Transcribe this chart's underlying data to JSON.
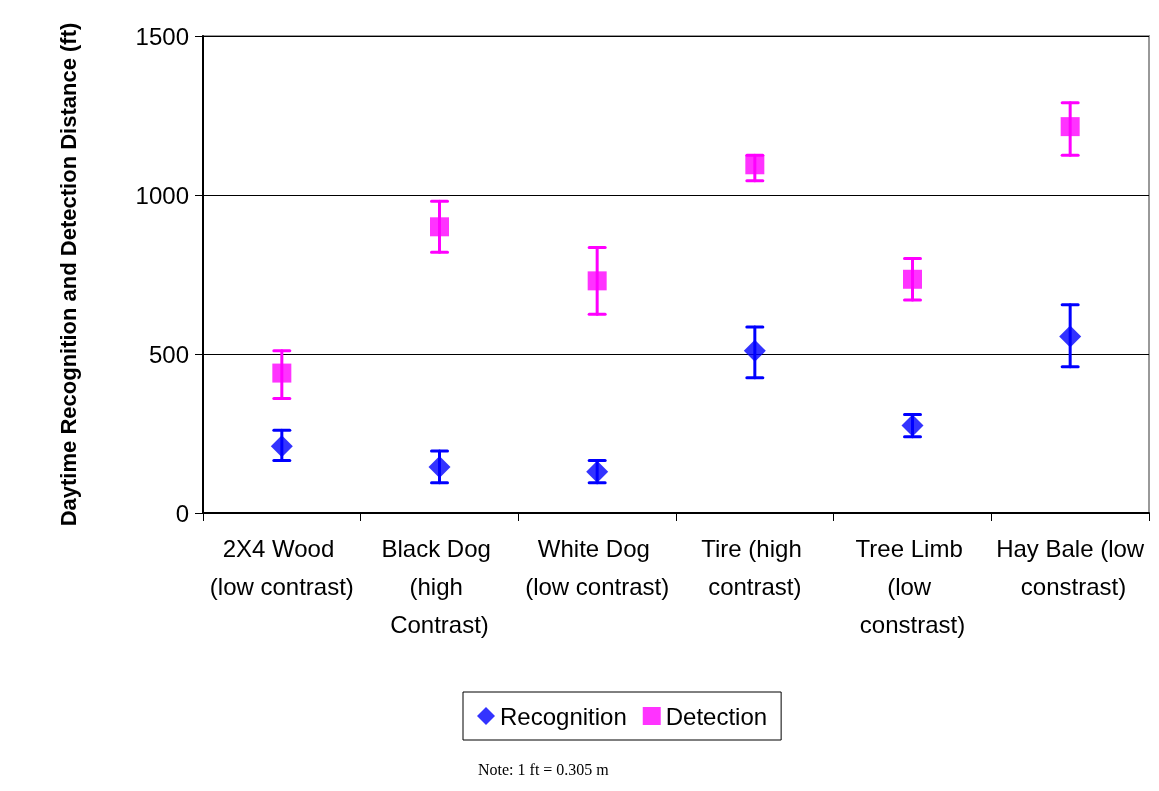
{
  "chart_data": {
    "type": "scatter",
    "ylabel": "Daytime Recognition and Detection Distance (ft)",
    "categories": [
      "2X4 Wood (low contrast)",
      "Black Dog (high Contrast)",
      "White Dog (low contrast)",
      "Tire (high contrast)",
      "Tree Limb (low constrast)",
      "Hay Bale (low constrast)"
    ],
    "series": [
      {
        "name": "Recognition",
        "color": "#0000ff",
        "marker": "diamond",
        "values": [
          210,
          145,
          130,
          510,
          275,
          555
        ],
        "errors": [
          [
            165,
            260
          ],
          [
            95,
            195
          ],
          [
            95,
            165
          ],
          [
            425,
            585
          ],
          [
            240,
            310
          ],
          [
            460,
            655
          ]
        ]
      },
      {
        "name": "Detection",
        "color": "#ff00ff",
        "marker": "square",
        "values": [
          440,
          900,
          730,
          1095,
          735,
          1215
        ],
        "errors": [
          [
            360,
            510
          ],
          [
            820,
            980
          ],
          [
            625,
            835
          ],
          [
            1045,
            1125
          ],
          [
            670,
            800
          ],
          [
            1125,
            1290
          ]
        ]
      }
    ],
    "ylim": [
      0,
      1500
    ],
    "yticks": [
      0,
      500,
      1000,
      1500
    ],
    "grid": "y",
    "legend": "bottom",
    "annotations": [
      "Note: 1 ft = 0.305 m"
    ]
  }
}
